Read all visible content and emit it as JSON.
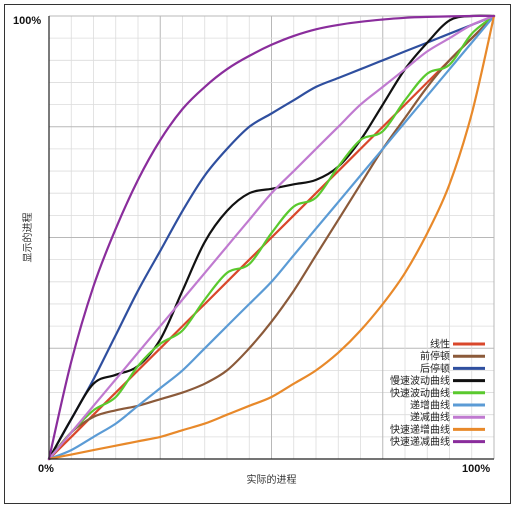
{
  "chart_data": {
    "type": "line",
    "xlabel": "实际的进程",
    "ylabel": "显示的进程",
    "xlim": [
      0,
      100
    ],
    "ylim": [
      0,
      100
    ],
    "x_tick_labels": [
      "0%",
      "100%"
    ],
    "y_tick_labels": [
      "0%",
      "100%"
    ],
    "grid": true,
    "legend_position": "bottom-right",
    "x": [
      0,
      5,
      10,
      15,
      20,
      25,
      30,
      35,
      40,
      45,
      50,
      55,
      60,
      65,
      70,
      75,
      80,
      85,
      90,
      95,
      100
    ],
    "series": [
      {
        "name": "线性",
        "color": "#d9472b",
        "values": [
          0,
          5,
          10,
          15,
          20,
          25,
          30,
          35,
          40,
          45,
          50,
          55,
          60,
          65,
          70,
          75,
          80,
          85,
          90,
          95,
          100
        ]
      },
      {
        "name": "前停顿",
        "color": "#8b5a3a",
        "values": [
          0,
          6,
          9.5,
          11,
          12,
          13.5,
          15,
          17,
          20,
          25,
          31,
          38,
          46,
          54,
          62,
          70,
          77,
          84,
          90,
          95,
          100
        ]
      },
      {
        "name": "后停顿",
        "color": "#2f4f9f",
        "values": [
          0,
          9,
          18,
          28,
          38,
          47,
          56,
          64,
          70,
          75,
          78,
          81,
          84,
          86,
          88,
          90,
          92,
          94,
          96,
          98,
          100
        ]
      },
      {
        "name": "慢速波动曲线",
        "color": "#111111",
        "values": [
          0,
          9,
          17,
          19,
          21,
          27,
          38,
          49,
          56,
          60,
          61,
          62,
          63,
          66,
          72,
          80,
          88,
          94,
          99,
          100,
          100
        ]
      },
      {
        "name": "快速波动曲线",
        "color": "#5ac92e",
        "values": [
          0,
          6,
          11,
          14,
          21,
          26,
          29,
          36,
          42,
          44,
          51,
          57,
          59,
          66,
          72,
          74,
          81,
          87,
          89,
          96,
          100
        ]
      },
      {
        "name": "递增曲线",
        "color": "#5b9bd5",
        "values": [
          0,
          2,
          5,
          8,
          12,
          16,
          20,
          25,
          30,
          35,
          40,
          46,
          52,
          58,
          64,
          70,
          76,
          82,
          88,
          94,
          100
        ]
      },
      {
        "name": "递减曲线",
        "color": "#c07ad0",
        "values": [
          0,
          6,
          12,
          18,
          24,
          30,
          36,
          42,
          48,
          54,
          60,
          65,
          70,
          75,
          80,
          84,
          88,
          92,
          95,
          98,
          100
        ]
      },
      {
        "name": "快速递增曲线",
        "color": "#e8892a",
        "values": [
          0,
          1,
          2,
          3,
          4,
          5,
          6.5,
          8,
          10,
          12,
          14,
          17,
          20,
          24,
          29,
          35,
          42,
          51,
          62,
          78,
          100
        ]
      },
      {
        "name": "快速递减曲线",
        "color": "#8a2d9c",
        "values": [
          0,
          22,
          39,
          52,
          63,
          72,
          79,
          84,
          88,
          91,
          93.5,
          95.5,
          97,
          98,
          98.7,
          99.2,
          99.6,
          99.8,
          99.9,
          100,
          100
        ]
      }
    ]
  }
}
